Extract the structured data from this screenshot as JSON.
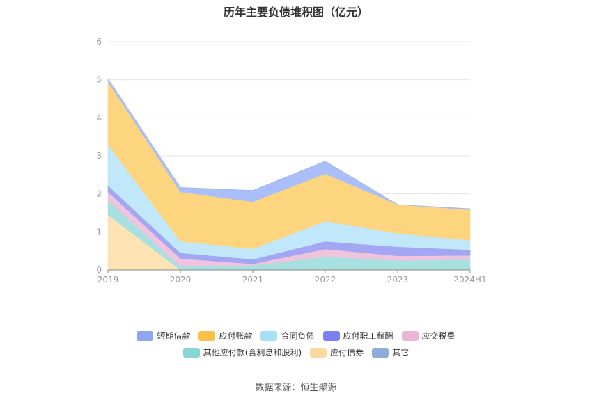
{
  "chart_data": {
    "type": "area",
    "stacked": true,
    "title": "历年主要负债堆积图（亿元）",
    "categories": [
      "2019",
      "2020",
      "2021",
      "2022",
      "2023",
      "2024H1"
    ],
    "ylim": [
      0,
      6
    ],
    "yticks": [
      "0",
      "1",
      "2",
      "3",
      "4",
      "5",
      "6"
    ],
    "grid": true,
    "legend_position": "bottom",
    "series": [
      {
        "name": "应付债券",
        "color": "#fde3b4",
        "values": [
          1.45,
          0,
          0,
          0,
          0,
          0
        ]
      },
      {
        "name": "其他应付款(含利息和股利)",
        "color": "#a8e0e0",
        "values": [
          0.38,
          0.1,
          0.12,
          0.35,
          0.25,
          0.28
        ]
      },
      {
        "name": "应交税费",
        "color": "#f0c4de",
        "values": [
          0.22,
          0.2,
          0.04,
          0.2,
          0.12,
          0.1
        ]
      },
      {
        "name": "应付职工薪酬",
        "color": "#a3a6f2",
        "values": [
          0.17,
          0.15,
          0.12,
          0.2,
          0.24,
          0.15
        ]
      },
      {
        "name": "合同负债",
        "color": "#c0e7fa",
        "values": [
          1.08,
          0.3,
          0.27,
          0.53,
          0.35,
          0.25
        ]
      },
      {
        "name": "应付账款",
        "color": "#fdd57e",
        "values": [
          1.65,
          1.3,
          1.24,
          1.25,
          0.76,
          0.8
        ]
      },
      {
        "name": "短期借款",
        "color": "#aabef9",
        "values": [
          0.08,
          0.12,
          0.3,
          0.33,
          0,
          0.03
        ]
      },
      {
        "name": "其它",
        "color": "#9cb5e0",
        "values": [
          0,
          0,
          0,
          0,
          0,
          0
        ]
      }
    ]
  },
  "legend": {
    "row1": [
      {
        "label": "短期借款",
        "color": "#8ca6f5"
      },
      {
        "label": "应付账款",
        "color": "#fbc146"
      },
      {
        "label": "合同负债",
        "color": "#a9def7"
      },
      {
        "label": "应付职工薪酬",
        "color": "#7c80ee"
      },
      {
        "label": "应交税费",
        "color": "#e8b5d8"
      }
    ],
    "row2": [
      {
        "label": "其他应付款(含利息和股利)",
        "color": "#86d6d6"
      },
      {
        "label": "应付债券",
        "color": "#fcd9a0"
      },
      {
        "label": "其它",
        "color": "#8fadd8"
      }
    ]
  },
  "source": "数据来源：恒生聚源"
}
